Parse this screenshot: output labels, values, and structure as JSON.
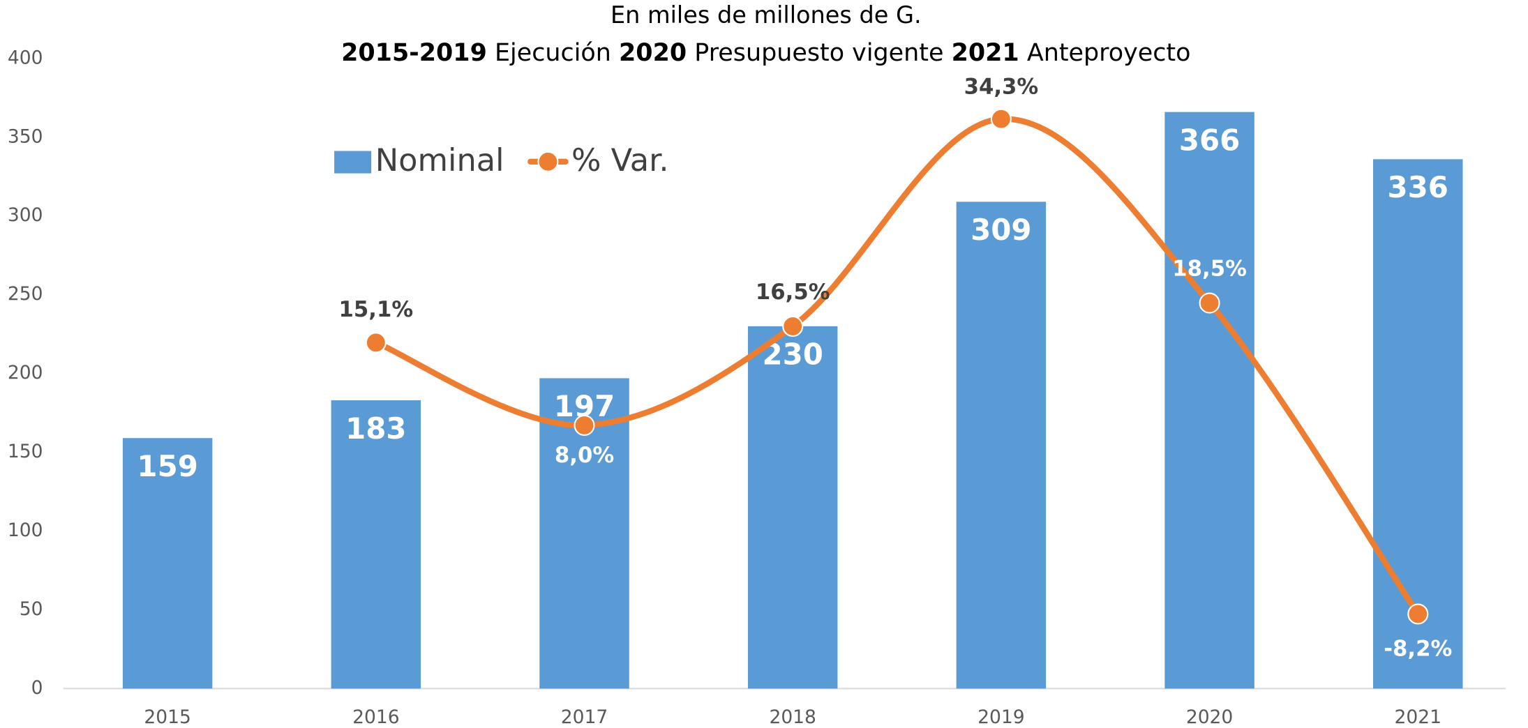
{
  "chart_data": {
    "type": "bar",
    "title": "En miles de millones de G.",
    "subtitle": [
      {
        "text": "2015-2019",
        "bold": true
      },
      {
        "text": "Ejecución",
        "bold": false
      },
      {
        "text": "2020",
        "bold": true
      },
      {
        "text": "Presupuesto vigente",
        "bold": false
      },
      {
        "text": "2021",
        "bold": true
      },
      {
        "text": "Anteproyecto",
        "bold": false
      }
    ],
    "categories": [
      "2015",
      "2016",
      "2017",
      "2018",
      "2019",
      "2020",
      "2021"
    ],
    "series": [
      {
        "name": "Nominal",
        "type": "bar",
        "color": "#5b9bd5",
        "values": [
          159,
          183,
          197,
          230,
          309,
          366,
          336
        ]
      },
      {
        "name": "% Var.",
        "type": "line",
        "axis": "y2",
        "color": "#ed7d31",
        "values": [
          null,
          15.1,
          8.0,
          16.5,
          34.3,
          18.5,
          -8.2
        ],
        "value_labels": [
          null,
          "15,1%",
          "8,0%",
          "16,5%",
          "34,3%",
          "18,5%",
          "-8,2%"
        ]
      }
    ],
    "ylim": [
      0,
      400
    ],
    "yticks": [
      0,
      50,
      100,
      150,
      200,
      250,
      300,
      350,
      400
    ],
    "y2lim": [
      -14.6,
      39.5
    ],
    "grid": false,
    "legend": "upper left"
  }
}
